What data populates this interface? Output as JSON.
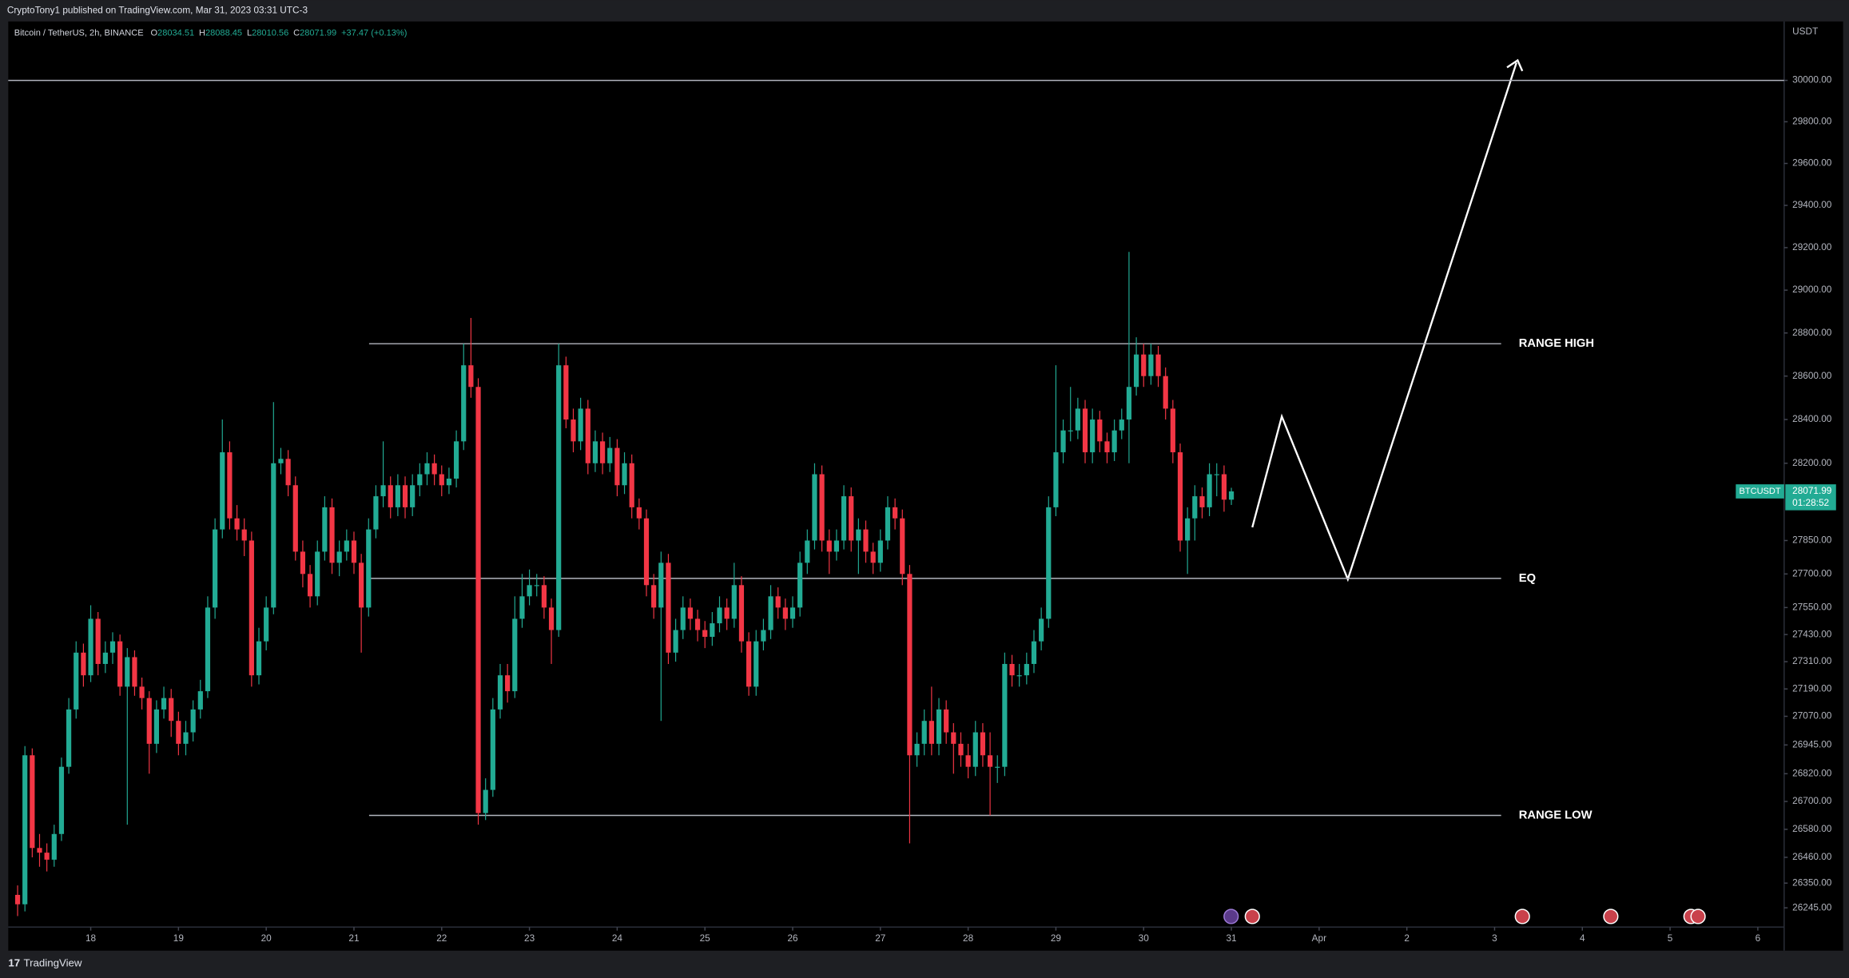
{
  "header": {
    "publisher": "CryptoTony1 published on TradingView.com, Mar 31, 2023 03:31 UTC-3"
  },
  "footer": {
    "brand": "TradingView"
  },
  "chart_data": {
    "type": "candlestick",
    "title": "Bitcoin / TetherUS, 2h, BINANCE",
    "legend_keys": [
      "O",
      "H",
      "L",
      "C"
    ],
    "change": "+37.47 (+0.13%)",
    "y_unit": "USDT",
    "symbol_tag": "BTCUSDT",
    "countdown": "01:28:52",
    "up_color": "#22ab94",
    "down_color": "#f23645",
    "level_color": "#b2b5be",
    "log_scale": true,
    "grid": false,
    "xlim": [
      17.06,
      37.3
    ],
    "xticks": [
      18,
      19,
      20,
      21,
      22,
      23,
      24,
      25,
      26,
      27,
      28,
      29,
      30,
      31,
      {
        "value": 32,
        "label": "Apr"
      },
      {
        "value": 33,
        "label": "2"
      },
      {
        "value": 34,
        "label": "3"
      },
      {
        "value": 35,
        "label": "4"
      },
      {
        "value": 36,
        "label": "5"
      },
      {
        "value": 37,
        "label": "6"
      }
    ],
    "ylim": [
      26064,
      30287
    ],
    "yticks": [
      {
        "value": 26245,
        "label": "26245.00"
      },
      {
        "value": 26350,
        "label": "26350.00"
      },
      {
        "value": 26460,
        "label": "26460.00"
      },
      {
        "value": 26580,
        "label": "26580.00"
      },
      {
        "value": 26700,
        "label": "26700.00"
      },
      {
        "value": 26820,
        "label": "26820.00"
      },
      {
        "value": 26945,
        "label": "26945.00"
      },
      {
        "value": 27070,
        "label": "27070.00"
      },
      {
        "value": 27190,
        "label": "27190.00"
      },
      {
        "value": 27310,
        "label": "27310.00"
      },
      {
        "value": 27430,
        "label": "27430.00"
      },
      {
        "value": 27550,
        "label": "27550.00"
      },
      {
        "value": 27700,
        "label": "27700.00"
      },
      {
        "value": 27850,
        "label": "27850.00"
      },
      {
        "value": 28200,
        "label": "28200.00"
      },
      {
        "value": 28400,
        "label": "28400.00"
      },
      {
        "value": 28600,
        "label": "28600.00"
      },
      {
        "value": 28800,
        "label": "28800.00"
      },
      {
        "value": 29000,
        "label": "29000.00"
      },
      {
        "value": 29200,
        "label": "29200.00"
      },
      {
        "value": 29400,
        "label": "29400.00"
      },
      {
        "value": 29600,
        "label": "29600.00"
      },
      {
        "value": 29800,
        "label": "29800.00"
      },
      {
        "value": 30000,
        "label": "30000.00"
      }
    ],
    "levels": [
      {
        "name": null,
        "value": 30000
      },
      {
        "name": "RANGE HIGH",
        "value": 28750
      },
      {
        "name": "EQ",
        "value": 27680
      },
      {
        "name": "RANGE LOW",
        "value": 26640
      }
    ],
    "x": [
      17.1667,
      17.25,
      17.3333,
      17.4167,
      17.5,
      17.5833,
      17.6667,
      17.75,
      17.8333,
      17.9167,
      18,
      18.0833,
      18.1667,
      18.25,
      18.3333,
      18.4167,
      18.5,
      18.5833,
      18.6667,
      18.75,
      18.8333,
      18.9167,
      19,
      19.0833,
      19.1667,
      19.25,
      19.3333,
      19.4167,
      19.5,
      19.5833,
      19.6667,
      19.75,
      19.8333,
      19.9167,
      20,
      20.0833,
      20.1667,
      20.25,
      20.3333,
      20.4167,
      20.5,
      20.5833,
      20.6667,
      20.75,
      20.8333,
      20.9167,
      21,
      21.0833,
      21.1667,
      21.25,
      21.3333,
      21.4167,
      21.5,
      21.5833,
      21.6667,
      21.75,
      21.8333,
      21.9167,
      22,
      22.0833,
      22.1667,
      22.25,
      22.3333,
      22.4167,
      22.5,
      22.5833,
      22.6667,
      22.75,
      22.8333,
      22.9167,
      23,
      23.0833,
      23.1667,
      23.25,
      23.3333,
      23.4167,
      23.5,
      23.5833,
      23.6667,
      23.75,
      23.8333,
      23.9167,
      24,
      24.0833,
      24.1667,
      24.25,
      24.3333,
      24.4167,
      24.5,
      24.5833,
      24.6667,
      24.75,
      24.8333,
      24.9167,
      25,
      25.0833,
      25.1667,
      25.25,
      25.3333,
      25.4167,
      25.5,
      25.5833,
      25.6667,
      25.75,
      25.8333,
      25.9167,
      26,
      26.0833,
      26.1667,
      26.25,
      26.3333,
      26.4167,
      26.5,
      26.5833,
      26.6667,
      26.75,
      26.8333,
      26.9167,
      27,
      27.0833,
      27.1667,
      27.25,
      27.3333,
      27.4167,
      27.5,
      27.5833,
      27.6667,
      27.75,
      27.8333,
      27.9167,
      28,
      28.0833,
      28.1667,
      28.25,
      28.3333,
      28.4167,
      28.5,
      28.5833,
      28.6667,
      28.75,
      28.8333,
      28.9167,
      29,
      29.0833,
      29.1667,
      29.25,
      29.3333,
      29.4167,
      29.5,
      29.5833,
      29.6667,
      29.75,
      29.8333,
      29.9167,
      30,
      30.0833,
      30.1667,
      30.25,
      30.3333,
      30.4167,
      30.5,
      30.5833,
      30.6667,
      30.75,
      30.8333,
      30.9167,
      31
    ],
    "open": [
      26300,
      26260,
      26900,
      26500,
      26480,
      26450,
      26560,
      26850,
      27100,
      27350,
      27250,
      27500,
      27300,
      27350,
      27400,
      27200,
      27330,
      27200,
      27150,
      26950,
      27100,
      27150,
      27050,
      26950,
      27000,
      27100,
      27180,
      27550,
      27900,
      28250,
      27950,
      27900,
      27850,
      27250,
      27400,
      27550,
      28200,
      28220,
      28100,
      27800,
      27700,
      27600,
      27800,
      28000,
      27750,
      27800,
      27850,
      27750,
      27550,
      27900,
      28050,
      28100,
      28000,
      28100,
      28000,
      28100,
      28150,
      28200,
      28150,
      28100,
      28130,
      28300,
      28650,
      28550,
      26650,
      26750,
      27100,
      27250,
      27180,
      27500,
      27600,
      27650,
      27650,
      27550,
      27450,
      28650,
      28400,
      28300,
      28450,
      28200,
      28300,
      28200,
      28270,
      28100,
      28200,
      28000,
      27950,
      27650,
      27550,
      27750,
      27350,
      27450,
      27550,
      27500,
      27450,
      27420,
      27480,
      27550,
      27500,
      27650,
      27400,
      27200,
      27400,
      27450,
      27600,
      27550,
      27500,
      27550,
      27750,
      27850,
      28150,
      27850,
      27800,
      27850,
      28050,
      27850,
      27900,
      27800,
      27750,
      27850,
      28000,
      27950,
      27700,
      26900,
      26950,
      27050,
      26950,
      27100,
      27000,
      26950,
      26900,
      26850,
      27000,
      26900,
      26850,
      26850,
      27300,
      27250,
      27250,
      27300,
      27400,
      27500,
      28000,
      28250,
      28350,
      28350,
      28450,
      28250,
      28400,
      28300,
      28250,
      28350,
      28400,
      28550,
      28700,
      28600,
      28700,
      28600,
      28450,
      28250,
      27850,
      27950,
      28050,
      28000,
      28150,
      28150,
      28034.51
    ],
    "high": [
      26340,
      26940,
      26930,
      26560,
      26520,
      26600,
      26890,
      27150,
      27400,
      27390,
      27560,
      27530,
      27400,
      27440,
      27430,
      27370,
      27360,
      27240,
      27180,
      27140,
      27200,
      27190,
      27090,
      27050,
      27140,
      27230,
      27600,
      27950,
      28400,
      28300,
      28010,
      27950,
      27890,
      27460,
      27600,
      28480,
      28270,
      28260,
      28140,
      27850,
      27740,
      27850,
      28050,
      28040,
      27850,
      27900,
      27890,
      27790,
      27950,
      28100,
      28300,
      28140,
      28150,
      28140,
      28150,
      28200,
      28250,
      28240,
      28190,
      28180,
      28350,
      28750,
      28870,
      28590,
      26800,
      27150,
      27300,
      27300,
      27600,
      27700,
      27720,
      27700,
      27690,
      27590,
      28750,
      28690,
      28450,
      28500,
      28490,
      28350,
      28340,
      28320,
      28310,
      28250,
      28240,
      28040,
      27990,
      27700,
      27800,
      27790,
      27500,
      27600,
      27590,
      27540,
      27490,
      27530,
      27600,
      27590,
      27750,
      27690,
      27440,
      27450,
      27500,
      27650,
      27640,
      27590,
      27600,
      27800,
      27900,
      28200,
      28190,
      27900,
      27900,
      28100,
      28090,
      27950,
      27940,
      27840,
      27900,
      28050,
      28040,
      27990,
      27740,
      27000,
      27100,
      27200,
      27150,
      27140,
      27040,
      27000,
      26950,
      27050,
      27040,
      27000,
      26900,
      27350,
      27340,
      27300,
      27350,
      27450,
      27550,
      28050,
      28650,
      28400,
      28550,
      28500,
      28490,
      28450,
      28440,
      28340,
      28400,
      28450,
      29180,
      28780,
      28750,
      28750,
      28740,
      28640,
      28490,
      28290,
      28000,
      28100,
      28090,
      28200,
      28200,
      28190,
      28088.45
    ],
    "low": [
      26210,
      26230,
      26460,
      26420,
      26400,
      26420,
      26530,
      26820,
      27060,
      27200,
      27220,
      27250,
      27260,
      27300,
      27160,
      26600,
      27160,
      27100,
      26820,
      26910,
      27060,
      26980,
      26900,
      26900,
      26960,
      27060,
      27150,
      27500,
      27860,
      27900,
      27850,
      27780,
      27200,
      27210,
      27360,
      27520,
      28150,
      28050,
      27760,
      27640,
      27550,
      27560,
      27760,
      27700,
      27690,
      27760,
      27700,
      27350,
      27510,
      27860,
      28000,
      27950,
      27960,
      27950,
      27960,
      28050,
      28100,
      28100,
      28050,
      28060,
      28090,
      28260,
      28500,
      26600,
      26620,
      26720,
      27060,
      27130,
      27150,
      27460,
      27560,
      27600,
      27500,
      27300,
      27420,
      28360,
      28250,
      28260,
      28150,
      28160,
      28150,
      28160,
      28050,
      28060,
      27950,
      27900,
      27600,
      27500,
      27050,
      27300,
      27310,
      27410,
      27450,
      27400,
      27370,
      27380,
      27440,
      27450,
      27460,
      27350,
      27160,
      27160,
      27360,
      27410,
      27500,
      27450,
      27460,
      27510,
      27700,
      27810,
      27800,
      27700,
      27760,
      27810,
      27800,
      27700,
      27750,
      27700,
      27710,
      27810,
      27900,
      27650,
      26520,
      26850,
      26900,
      26900,
      26900,
      26950,
      26820,
      26850,
      26800,
      26810,
      26850,
      26640,
      26780,
      26810,
      27200,
      27200,
      27210,
      27260,
      27360,
      27460,
      27960,
      28200,
      28300,
      28310,
      28200,
      28200,
      28250,
      28200,
      28210,
      28310,
      28200,
      28510,
      28550,
      28560,
      28550,
      28400,
      28200,
      27800,
      27700,
      27850,
      27950,
      27960,
      28050,
      27980,
      28010.56
    ],
    "close": [
      26260,
      26900,
      26500,
      26480,
      26450,
      26560,
      26850,
      27100,
      27350,
      27250,
      27500,
      27300,
      27350,
      27400,
      27200,
      27330,
      27200,
      27150,
      26950,
      27100,
      27150,
      27050,
      26950,
      27000,
      27100,
      27180,
      27550,
      27900,
      28250,
      27950,
      27900,
      27850,
      27250,
      27400,
      27550,
      28200,
      28220,
      28100,
      27800,
      27700,
      27600,
      27800,
      28000,
      27750,
      27800,
      27850,
      27750,
      27550,
      27900,
      28050,
      28100,
      28000,
      28100,
      28000,
      28100,
      28150,
      28200,
      28150,
      28100,
      28130,
      28300,
      28650,
      28550,
      26650,
      26750,
      27100,
      27250,
      27180,
      27500,
      27600,
      27650,
      27650,
      27550,
      27450,
      28650,
      28400,
      28300,
      28450,
      28200,
      28300,
      28200,
      28270,
      28100,
      28200,
      28000,
      27950,
      27650,
      27550,
      27750,
      27350,
      27450,
      27550,
      27500,
      27450,
      27420,
      27480,
      27550,
      27500,
      27650,
      27400,
      27200,
      27400,
      27450,
      27600,
      27550,
      27500,
      27550,
      27750,
      27850,
      28150,
      27850,
      27800,
      27850,
      28050,
      27850,
      27900,
      27800,
      27750,
      27850,
      28000,
      27950,
      27700,
      26900,
      26950,
      27050,
      26950,
      27100,
      27000,
      26950,
      26900,
      26850,
      27000,
      26900,
      26850,
      26850,
      27300,
      27250,
      27250,
      27300,
      27400,
      27500,
      28000,
      28250,
      28350,
      28350,
      28450,
      28250,
      28400,
      28300,
      28250,
      28350,
      28400,
      28550,
      28700,
      28600,
      28700,
      28600,
      28450,
      28250,
      27850,
      27950,
      28050,
      28000,
      28150,
      28150,
      28034.51,
      28071.99
    ]
  }
}
